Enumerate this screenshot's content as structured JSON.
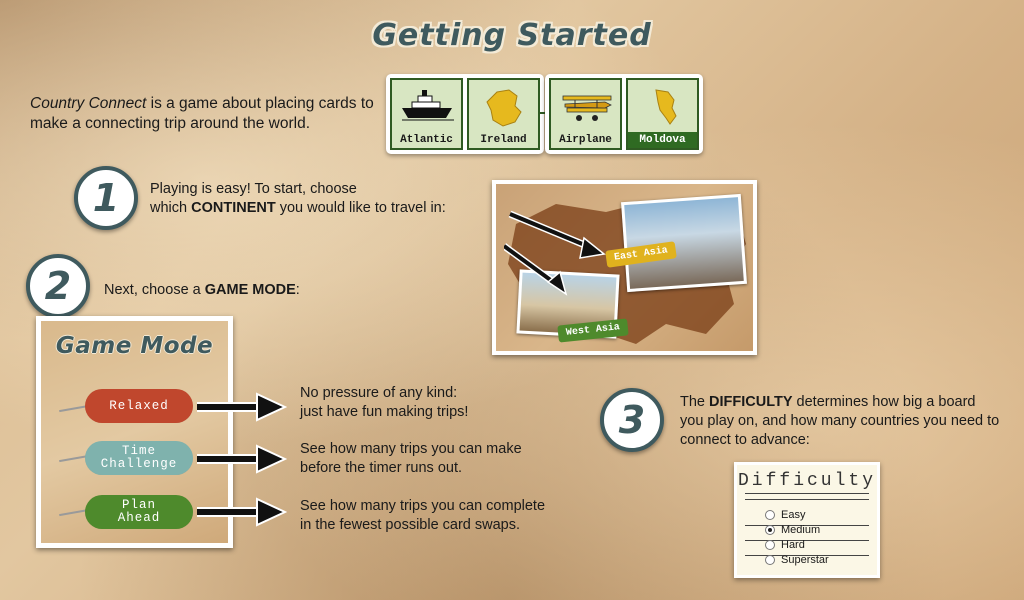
{
  "title": "Getting Started",
  "intro": {
    "game_name": "Country Connect",
    "text": " is a game about placing cards to make a connecting trip around the world."
  },
  "cards": [
    {
      "label": "Atlantic",
      "icon": "ship-icon"
    },
    {
      "label": "Ireland",
      "icon": "ireland-map-icon"
    },
    {
      "label": "Airplane",
      "icon": "biplane-icon"
    },
    {
      "label": "Moldova",
      "icon": "moldova-map-icon",
      "highlight": true
    }
  ],
  "steps": [
    {
      "number": "1",
      "text_a": "Playing is easy! To start, choose",
      "text_b": "which ",
      "bold": "CONTINENT",
      "text_c": " you would like to travel in:"
    },
    {
      "number": "2",
      "text_a": "Next, choose a ",
      "bold": "GAME MODE",
      "text_c": ":"
    },
    {
      "number": "3",
      "text_a": "The ",
      "bold": "DIFFICULTY",
      "text_c": " determines how big a board you play on, and how many countries you need to connect to advance:"
    }
  ],
  "continent_map": {
    "tags": [
      "East Asia",
      "West Asia"
    ]
  },
  "game_mode": {
    "title": "Game Mode",
    "modes": [
      {
        "line1": "Relaxed",
        "line2": "",
        "color": "#c0472d",
        "desc1": "No pressure of any kind:",
        "desc2": "just have fun making trips!"
      },
      {
        "line1": "Time",
        "line2": "Challenge",
        "color": "#7fb2ad",
        "desc1": "See how many trips you can make",
        "desc2": "before the timer runs out."
      },
      {
        "line1": "Plan",
        "line2": "Ahead",
        "color": "#4e8a2c",
        "desc1": "See how many trips you can complete",
        "desc2": "in the fewest possible card swaps."
      }
    ]
  },
  "difficulty": {
    "title": "Difficulty",
    "options": [
      "Easy",
      "Medium",
      "Hard",
      "Superstar"
    ],
    "selected": "Medium"
  },
  "colors": {
    "accent": "#3f5a5e",
    "card_border": "#2f5a22",
    "card_fill": "#d8e6c2"
  }
}
